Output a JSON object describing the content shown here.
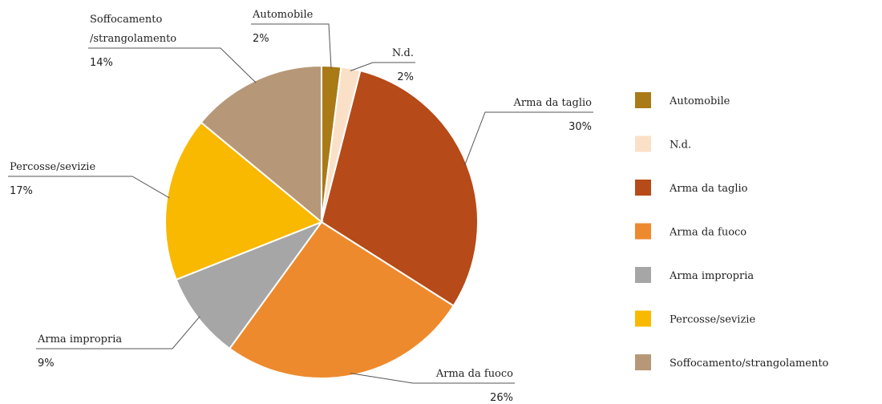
{
  "chart_data": {
    "type": "pie",
    "categories": [
      "Automobile",
      "N.d.",
      "Arma da taglio",
      "Arma da fuoco",
      "Arma impropria",
      "Percosse/sevizie",
      "Soffocamento/strangolamento"
    ],
    "values": [
      2,
      2,
      30,
      26,
      9,
      17,
      14
    ],
    "value_labels": [
      "2%",
      "2%",
      "30%",
      "26%",
      "9%",
      "17%",
      "14%"
    ],
    "colors": [
      "#a97a16",
      "#fbe0c8",
      "#b64a18",
      "#ee8a2e",
      "#a6a6a6",
      "#f9b900",
      "#b69878"
    ],
    "legend": "right"
  }
}
